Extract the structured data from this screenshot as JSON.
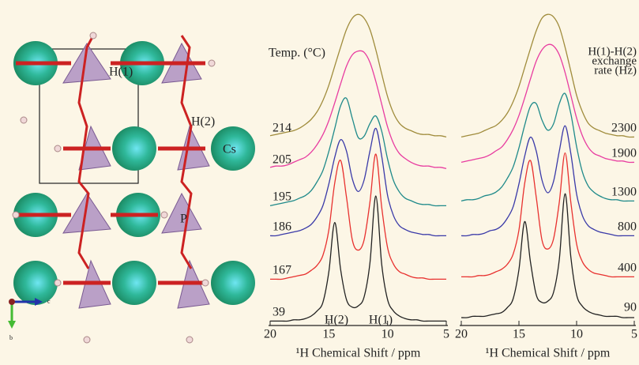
{
  "structure": {
    "labels": [
      "H(1)",
      "H(2)",
      "Cs",
      "P"
    ],
    "axes": [
      "c",
      "b"
    ]
  },
  "chart_data": [
    {
      "type": "line",
      "x_label": "¹H Chemical Shift / ppm",
      "legend_title": [
        "Temp. (°C)"
      ],
      "annotations": [
        "H(2)",
        "H(1)"
      ],
      "xlim": [
        20,
        5
      ],
      "xticks": [
        20,
        15,
        10,
        5
      ],
      "x": [
        20,
        19.5,
        19,
        18.5,
        18,
        17.5,
        17,
        16.5,
        16,
        15.5,
        15,
        14.5,
        14,
        13.5,
        13,
        12.5,
        12,
        11.5,
        11,
        10.5,
        10,
        9.5,
        9,
        8.5,
        8,
        7.5,
        7,
        6.5,
        6,
        5.5,
        5
      ],
      "series": [
        {
          "name": "39",
          "color": "#222222",
          "values": [
            1,
            1,
            1,
            1,
            2,
            2,
            3,
            5,
            9,
            16,
            40,
            79,
            42,
            18,
            12,
            13,
            20,
            47,
            100,
            46,
            18,
            9,
            5,
            3,
            2,
            2,
            1,
            1,
            1,
            1,
            1
          ]
        },
        {
          "name": "167",
          "color": "#e8312f",
          "values": [
            1,
            1,
            1,
            2,
            3,
            4,
            5,
            8,
            12,
            20,
            40,
            77,
            95,
            66,
            32,
            24,
            32,
            62,
            100,
            58,
            26,
            13,
            7,
            5,
            3,
            2,
            2,
            1,
            1,
            1,
            1
          ]
        },
        {
          "name": "186",
          "color": "#3a3aa8",
          "values": [
            1,
            1,
            2,
            3,
            4,
            5,
            7,
            10,
            16,
            25,
            42,
            63,
            77,
            68,
            46,
            36,
            45,
            68,
            86,
            64,
            33,
            17,
            9,
            6,
            4,
            3,
            2,
            2,
            1,
            1,
            1
          ]
        },
        {
          "name": "195",
          "color": "#1f8a8a",
          "values": [
            1,
            2,
            3,
            4,
            5,
            7,
            9,
            13,
            20,
            29,
            44,
            62,
            80,
            86,
            70,
            55,
            56,
            66,
            72,
            60,
            38,
            21,
            12,
            7,
            5,
            3,
            2,
            2,
            1,
            1,
            1
          ]
        },
        {
          "name": "205",
          "color": "#e83ca0",
          "values": [
            2,
            3,
            3,
            4,
            6,
            8,
            10,
            14,
            20,
            28,
            39,
            53,
            68,
            82,
            91,
            94,
            93,
            85,
            70,
            52,
            34,
            21,
            13,
            9,
            6,
            4,
            3,
            3,
            2,
            2,
            1
          ]
        },
        {
          "name": "214",
          "color": "#a08c3c",
          "values": [
            2,
            3,
            4,
            5,
            6,
            8,
            11,
            15,
            21,
            30,
            42,
            57,
            72,
            86,
            95,
            98,
            95,
            86,
            70,
            51,
            33,
            20,
            12,
            8,
            6,
            4,
            3,
            3,
            2,
            2,
            1
          ]
        }
      ]
    },
    {
      "type": "line",
      "x_label": "¹H Chemical Shift / ppm",
      "legend_title": [
        "H(1)-H(2)",
        "exchange",
        "rate (Hz)"
      ],
      "xlim": [
        20,
        5
      ],
      "xticks": [
        20,
        15,
        10,
        5
      ],
      "x": [
        20,
        19.5,
        19,
        18.5,
        18,
        17.5,
        17,
        16.5,
        16,
        15.5,
        15,
        14.5,
        14,
        13.5,
        13,
        12.5,
        12,
        11.5,
        11,
        10.5,
        10,
        9.5,
        9,
        8.5,
        8,
        7.5,
        7,
        6.5,
        6,
        5.5,
        5
      ],
      "series": [
        {
          "name": "90",
          "color": "#222222",
          "values": [
            0,
            0,
            1,
            1,
            1,
            2,
            3,
            4,
            8,
            15,
            38,
            76,
            44,
            18,
            12,
            13,
            20,
            46,
            98,
            48,
            18,
            9,
            5,
            3,
            2,
            1,
            1,
            1,
            0,
            0,
            0
          ]
        },
        {
          "name": "400",
          "color": "#e8312f",
          "values": [
            1,
            1,
            1,
            2,
            2,
            3,
            5,
            7,
            11,
            19,
            38,
            75,
            93,
            64,
            30,
            23,
            31,
            60,
            99,
            60,
            27,
            13,
            7,
            4,
            3,
            2,
            1,
            1,
            1,
            1,
            1
          ]
        },
        {
          "name": "800",
          "color": "#3a3aa8",
          "values": [
            1,
            1,
            2,
            2,
            3,
            5,
            6,
            9,
            15,
            24,
            42,
            64,
            79,
            68,
            45,
            35,
            44,
            68,
            88,
            66,
            34,
            17,
            9,
            6,
            4,
            3,
            2,
            1,
            1,
            1,
            1
          ]
        },
        {
          "name": "1300",
          "color": "#1f8a8a",
          "values": [
            1,
            2,
            2,
            3,
            5,
            6,
            8,
            12,
            19,
            28,
            43,
            61,
            76,
            78,
            65,
            57,
            62,
            78,
            86,
            70,
            44,
            24,
            13,
            8,
            5,
            3,
            2,
            2,
            1,
            1,
            1
          ]
        },
        {
          "name": "1900",
          "color": "#e83ca0",
          "values": [
            1,
            2,
            3,
            4,
            5,
            7,
            10,
            13,
            19,
            27,
            38,
            52,
            67,
            81,
            90,
            94,
            93,
            86,
            72,
            54,
            36,
            22,
            13,
            8,
            6,
            4,
            3,
            2,
            2,
            1,
            1
          ]
        },
        {
          "name": "2300",
          "color": "#a08c3c",
          "values": [
            1,
            2,
            3,
            4,
            6,
            8,
            10,
            14,
            20,
            29,
            41,
            56,
            71,
            85,
            95,
            98,
            96,
            88,
            72,
            53,
            34,
            21,
            12,
            8,
            6,
            4,
            3,
            2,
            2,
            1,
            1
          ]
        }
      ]
    }
  ]
}
